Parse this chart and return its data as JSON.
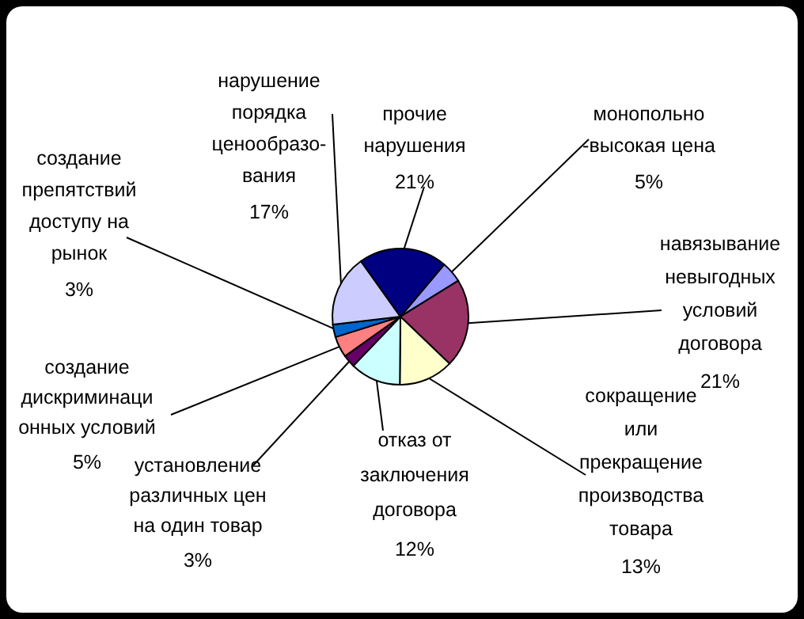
{
  "chart_data": {
    "type": "pie",
    "categories": [
      "монопольно\n-высокая цена",
      "навязывание\nневыгодных\nусловий\nдоговора",
      "сокращение\nили\nпрекращение\nпроизводства\nтовара",
      "отказ от\nзаключения\nдоговора",
      "установление\nразличных цен\nна один товар",
      "создание\nдискриминаци\nонных условий",
      "создание\nпрепятствий\nдоступу на\nрынок",
      "нарушение\nпорядка\nценообразо-\nвания",
      "прочие\nнарушения"
    ],
    "values": [
      5,
      21,
      13,
      12,
      3,
      5,
      3,
      17,
      21
    ],
    "value_labels": [
      "5%",
      "21%",
      "13%",
      "12%",
      "3%",
      "5%",
      "3%",
      "17%",
      "21%"
    ],
    "colors": [
      "#9999ff",
      "#993366",
      "#ffffcc",
      "#ccffff",
      "#660066",
      "#ff8080",
      "#0066cc",
      "#ccccff",
      "#000080"
    ]
  }
}
